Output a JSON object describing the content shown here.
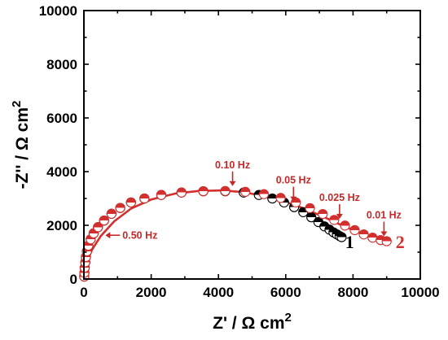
{
  "chart_data": {
    "type": "scatter",
    "title": "",
    "xlabel": "Z' / Ω cm",
    "xlabel_sup": "2",
    "ylabel": "-Z'' / Ω cm",
    "ylabel_sup": "2",
    "xlim": [
      0,
      10000
    ],
    "ylim": [
      0,
      10000
    ],
    "xticks": [
      0,
      2000,
      4000,
      6000,
      8000,
      10000
    ],
    "yticks": [
      0,
      2000,
      4000,
      6000,
      8000,
      10000
    ],
    "grid": false,
    "legend": "none",
    "colors": {
      "series1": "#000000",
      "series2": "#d32f2f",
      "fit_line": "#d32f2f",
      "label": "#c62828"
    },
    "series": [
      {
        "name": "1",
        "marker": "half-filled-circle",
        "x": [
          10,
          15,
          25,
          40,
          60,
          90,
          130,
          200,
          290,
          420,
          600,
          820,
          1080,
          1400,
          1800,
          2300,
          2900,
          3550,
          4200,
          4750,
          5200,
          5600,
          5950,
          6250,
          6520,
          6760,
          6970,
          7150,
          7300,
          7420,
          7520,
          7600,
          7660
        ],
        "y": [
          90,
          230,
          420,
          620,
          820,
          1030,
          1240,
          1480,
          1700,
          1930,
          2180,
          2430,
          2650,
          2850,
          3000,
          3130,
          3220,
          3270,
          3270,
          3220,
          3130,
          3000,
          2850,
          2680,
          2490,
          2300,
          2120,
          1960,
          1840,
          1740,
          1660,
          1600,
          1560
        ]
      },
      {
        "name": "2",
        "marker": "half-filled-circle",
        "x": [
          10,
          15,
          25,
          40,
          60,
          90,
          130,
          200,
          290,
          420,
          600,
          820,
          1080,
          1400,
          1800,
          2300,
          2900,
          3550,
          4200,
          4800,
          5350,
          5850,
          6300,
          6720,
          7100,
          7440,
          7760,
          8050,
          8320,
          8580,
          8820,
          9000
        ],
        "y": [
          90,
          230,
          420,
          620,
          820,
          1030,
          1240,
          1480,
          1700,
          1930,
          2180,
          2430,
          2650,
          2850,
          3000,
          3130,
          3220,
          3270,
          3280,
          3250,
          3160,
          3020,
          2850,
          2640,
          2420,
          2200,
          1990,
          1820,
          1660,
          1540,
          1450,
          1410
        ]
      }
    ],
    "fit_line": {
      "x": [
        0,
        30,
        100,
        250,
        500,
        900,
        1400,
        2000,
        2700,
        3400,
        4100,
        4700,
        5300,
        5850,
        6350,
        6800,
        7200,
        7600,
        7950,
        8300,
        8650,
        9000
      ],
      "y": [
        0,
        330,
        680,
        1110,
        1600,
        2150,
        2620,
        2960,
        3180,
        3280,
        3300,
        3240,
        3110,
        2930,
        2720,
        2490,
        2270,
        2040,
        1850,
        1660,
        1500,
        1390
      ]
    },
    "annotations": [
      {
        "text": "0.50 Hz",
        "x": 540,
        "y": 1630,
        "arrow": "left"
      },
      {
        "text": "0.10 Hz",
        "x": 4420,
        "y": 3340,
        "arrow": "down"
      },
      {
        "text": "0.05 Hz",
        "x": 6230,
        "y": 2770,
        "arrow": "down"
      },
      {
        "text": "0.025 Hz",
        "x": 7600,
        "y": 2120,
        "arrow": "down"
      },
      {
        "text": "0.01 Hz",
        "x": 8920,
        "y": 1470,
        "arrow": "down"
      }
    ],
    "series_labels": [
      {
        "text": "1",
        "x": 7900,
        "y": 1150,
        "color": "#000000"
      },
      {
        "text": "2",
        "x": 9400,
        "y": 1150,
        "color": "#d32f2f"
      }
    ]
  }
}
